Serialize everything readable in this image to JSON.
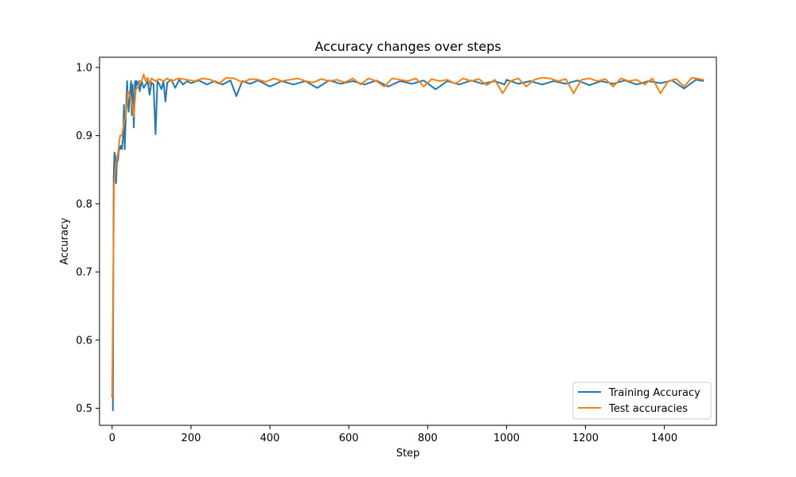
{
  "chart_data": {
    "type": "line",
    "title": "Accuracy changes over steps",
    "xlabel": "Step",
    "ylabel": "Accuracy",
    "xlim": [
      -32,
      1532
    ],
    "ylim": [
      0.475,
      1.015
    ],
    "xticks": [
      0,
      200,
      400,
      600,
      800,
      1000,
      1200,
      1400
    ],
    "xtick_labels": [
      "0",
      "200",
      "400",
      "600",
      "800",
      "1000",
      "1200",
      "1400"
    ],
    "yticks": [
      0.5,
      0.6,
      0.7,
      0.8,
      0.9,
      1.0
    ],
    "ytick_labels": [
      "0.5",
      "0.6",
      "0.7",
      "0.8",
      "0.9",
      "1.0"
    ],
    "grid": false,
    "legend_position": "bottom-right",
    "series": [
      {
        "name": "Training Accuracy",
        "color": "#1f77b4",
        "x": [
          0,
          2,
          4,
          6,
          8,
          10,
          12,
          15,
          18,
          20,
          22,
          25,
          28,
          30,
          32,
          35,
          38,
          40,
          42,
          45,
          48,
          50,
          52,
          55,
          58,
          60,
          62,
          65,
          68,
          70,
          75,
          80,
          85,
          90,
          95,
          100,
          105,
          110,
          115,
          120,
          125,
          130,
          135,
          140,
          150,
          160,
          170,
          180,
          190,
          200,
          220,
          240,
          260,
          280,
          300,
          315,
          330,
          350,
          370,
          400,
          430,
          460,
          490,
          520,
          550,
          580,
          610,
          640,
          670,
          700,
          730,
          760,
          790,
          820,
          850,
          880,
          910,
          940,
          970,
          995,
          1000,
          1030,
          1060,
          1090,
          1120,
          1150,
          1180,
          1210,
          1240,
          1270,
          1300,
          1330,
          1360,
          1390,
          1420,
          1450,
          1480,
          1500
        ],
        "y": [
          0.497,
          0.497,
          0.84,
          0.875,
          0.87,
          0.83,
          0.86,
          0.865,
          0.885,
          0.88,
          0.885,
          0.88,
          0.9,
          0.945,
          0.88,
          0.935,
          0.98,
          0.95,
          0.935,
          0.96,
          0.98,
          0.93,
          0.975,
          0.912,
          0.98,
          0.97,
          0.98,
          0.975,
          0.98,
          0.965,
          0.98,
          0.97,
          0.975,
          0.98,
          0.96,
          0.978,
          0.975,
          0.902,
          0.98,
          0.975,
          0.968,
          0.98,
          0.95,
          0.978,
          0.982,
          0.97,
          0.982,
          0.975,
          0.98,
          0.977,
          0.981,
          0.975,
          0.98,
          0.975,
          0.981,
          0.958,
          0.98,
          0.976,
          0.981,
          0.972,
          0.98,
          0.975,
          0.98,
          0.97,
          0.981,
          0.976,
          0.98,
          0.975,
          0.981,
          0.972,
          0.98,
          0.976,
          0.981,
          0.968,
          0.98,
          0.975,
          0.981,
          0.976,
          0.98,
          0.975,
          0.982,
          0.976,
          0.98,
          0.975,
          0.98,
          0.976,
          0.981,
          0.974,
          0.98,
          0.976,
          0.981,
          0.975,
          0.98,
          0.977,
          0.981,
          0.969,
          0.982,
          0.98
        ]
      },
      {
        "name": "Test accuracies",
        "color": "#ff7f0e",
        "x": [
          0,
          5,
          10,
          15,
          20,
          25,
          30,
          35,
          40,
          45,
          50,
          55,
          60,
          65,
          70,
          75,
          80,
          85,
          90,
          95,
          100,
          110,
          120,
          130,
          140,
          150,
          170,
          190,
          210,
          230,
          250,
          270,
          290,
          310,
          330,
          350,
          370,
          390,
          410,
          430,
          450,
          470,
          490,
          510,
          530,
          550,
          570,
          590,
          610,
          630,
          650,
          670,
          690,
          710,
          730,
          750,
          770,
          790,
          810,
          830,
          850,
          870,
          890,
          910,
          930,
          950,
          970,
          990,
          1010,
          1030,
          1050,
          1070,
          1090,
          1110,
          1130,
          1150,
          1170,
          1190,
          1210,
          1230,
          1250,
          1270,
          1290,
          1310,
          1330,
          1350,
          1370,
          1390,
          1410,
          1430,
          1450,
          1470,
          1500
        ],
        "y": [
          0.515,
          0.83,
          0.86,
          0.875,
          0.9,
          0.9,
          0.92,
          0.93,
          0.965,
          0.96,
          0.95,
          0.928,
          0.968,
          0.97,
          0.98,
          0.98,
          0.99,
          0.98,
          0.985,
          0.975,
          0.984,
          0.98,
          0.983,
          0.98,
          0.984,
          0.98,
          0.984,
          0.982,
          0.98,
          0.984,
          0.982,
          0.976,
          0.985,
          0.984,
          0.978,
          0.983,
          0.982,
          0.979,
          0.984,
          0.98,
          0.982,
          0.984,
          0.98,
          0.978,
          0.983,
          0.98,
          0.982,
          0.978,
          0.984,
          0.975,
          0.984,
          0.98,
          0.972,
          0.984,
          0.982,
          0.98,
          0.984,
          0.972,
          0.983,
          0.98,
          0.982,
          0.976,
          0.984,
          0.98,
          0.983,
          0.974,
          0.982,
          0.962,
          0.98,
          0.984,
          0.972,
          0.982,
          0.985,
          0.984,
          0.98,
          0.983,
          0.962,
          0.982,
          0.984,
          0.98,
          0.983,
          0.972,
          0.984,
          0.98,
          0.982,
          0.975,
          0.984,
          0.962,
          0.98,
          0.983,
          0.972,
          0.985,
          0.982
        ]
      }
    ]
  }
}
